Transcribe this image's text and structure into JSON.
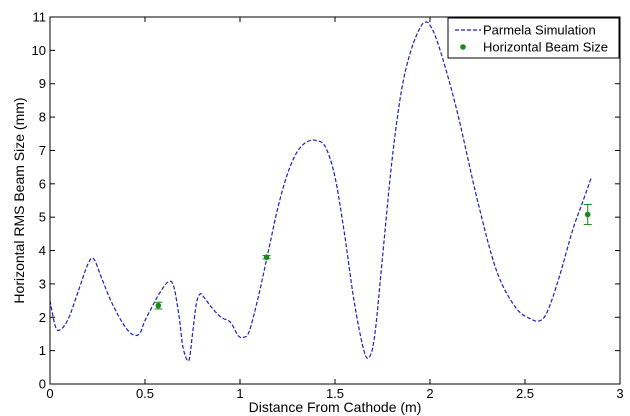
{
  "chart_data": {
    "type": "line",
    "xlabel": "Distance From Cathode (m)",
    "ylabel": "Horizontal RMS Beam Size (mm)",
    "xlim": [
      0,
      3
    ],
    "ylim": [
      0,
      11
    ],
    "x_ticks": [
      "0",
      "0.5",
      "1",
      "1.5",
      "2",
      "2.5",
      "3"
    ],
    "y_ticks": [
      "0",
      "1",
      "2",
      "3",
      "4",
      "5",
      "6",
      "7",
      "8",
      "9",
      "10",
      "11"
    ],
    "grid": false,
    "legend_position": "top-right",
    "legend": [
      "Parmela Simulation",
      "Horizontal Beam Size"
    ],
    "series": [
      {
        "name": "Parmela Simulation",
        "style": "dashed-line",
        "color": "#1f1fb4",
        "x": [
          0,
          0.03,
          0.06,
          0.1,
          0.15,
          0.2,
          0.23,
          0.27,
          0.32,
          0.38,
          0.43,
          0.47,
          0.5,
          0.55,
          0.58,
          0.62,
          0.65,
          0.68,
          0.7,
          0.73,
          0.75,
          0.77,
          0.79,
          0.81,
          0.85,
          0.9,
          0.95,
          0.99,
          1.02,
          1.05,
          1.1,
          1.15,
          1.2,
          1.25,
          1.3,
          1.35,
          1.4,
          1.45,
          1.5,
          1.55,
          1.6,
          1.65,
          1.68,
          1.71,
          1.75,
          1.8,
          1.85,
          1.9,
          1.95,
          1.98,
          2.0,
          2.03,
          2.08,
          2.15,
          2.25,
          2.35,
          2.45,
          2.53,
          2.58,
          2.62,
          2.68,
          2.75,
          2.8,
          2.85
        ],
        "y": [
          2.5,
          1.7,
          1.65,
          2.0,
          2.8,
          3.6,
          3.75,
          3.2,
          2.5,
          1.85,
          1.5,
          1.5,
          1.9,
          2.45,
          2.75,
          3.05,
          2.95,
          2.0,
          1.1,
          0.7,
          1.5,
          2.4,
          2.7,
          2.6,
          2.3,
          2.0,
          1.85,
          1.45,
          1.4,
          1.6,
          2.7,
          4.0,
          5.3,
          6.3,
          6.95,
          7.25,
          7.3,
          7.1,
          6.2,
          4.5,
          2.5,
          1.05,
          0.8,
          1.5,
          3.8,
          6.7,
          8.8,
          10.0,
          10.7,
          10.85,
          10.75,
          10.4,
          9.5,
          8.0,
          5.5,
          3.4,
          2.3,
          1.95,
          1.9,
          2.2,
          3.2,
          4.6,
          5.4,
          6.2
        ]
      },
      {
        "name": "Horizontal Beam Size",
        "style": "points-with-errorbars",
        "color": "#1a8a1a",
        "x": [
          0.57,
          1.14,
          2.83
        ],
        "y": [
          2.35,
          3.8,
          5.08
        ],
        "yerr": [
          0.1,
          0.05,
          0.3
        ]
      }
    ]
  }
}
